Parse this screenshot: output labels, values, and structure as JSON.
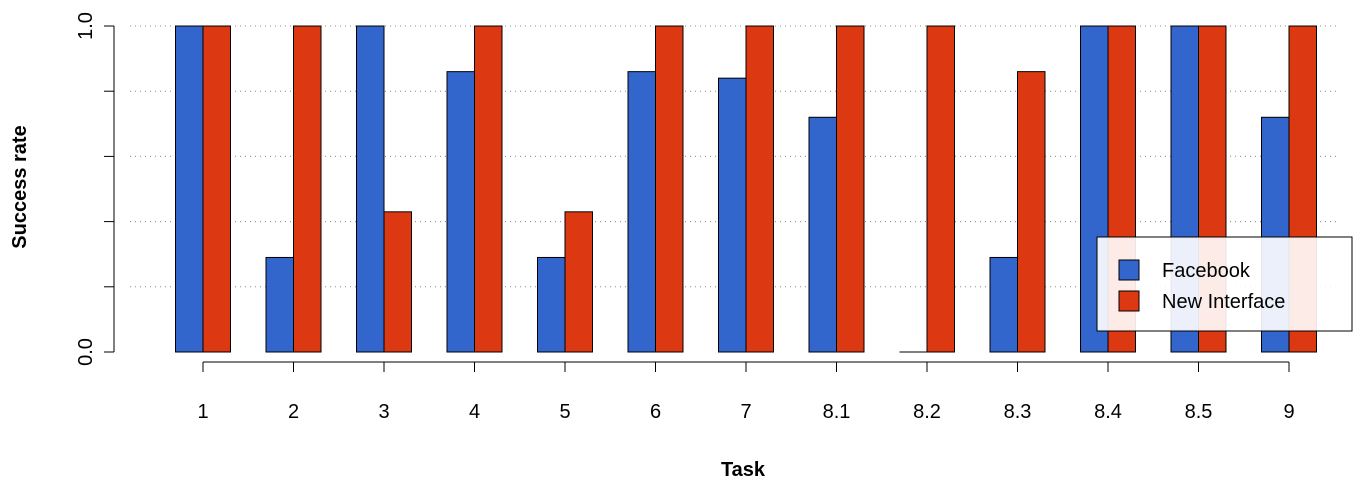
{
  "chart_data": {
    "type": "bar",
    "categories": [
      "1",
      "2",
      "3",
      "4",
      "5",
      "6",
      "7",
      "8.1",
      "8.2",
      "8.3",
      "8.4",
      "8.5",
      "9"
    ],
    "series": [
      {
        "name": "Facebook",
        "values": [
          1.0,
          0.29,
          1.0,
          0.86,
          0.29,
          0.86,
          0.84,
          0.72,
          0.0,
          0.29,
          1.0,
          1.0,
          0.72
        ]
      },
      {
        "name": "New Interface",
        "values": [
          1.0,
          1.0,
          0.43,
          1.0,
          0.43,
          1.0,
          1.0,
          1.0,
          1.0,
          0.86,
          1.0,
          1.0,
          1.0
        ]
      }
    ],
    "colors": {
      "Facebook": "#3366cc",
      "New Interface": "#dc3912"
    },
    "xlabel": "Task",
    "ylabel": "Success rate",
    "ylim": [
      0,
      1
    ],
    "ytick_labels": [
      "0.0",
      "1.0"
    ],
    "grid": "horizontal dotted",
    "legend_position": "bottom-right"
  }
}
